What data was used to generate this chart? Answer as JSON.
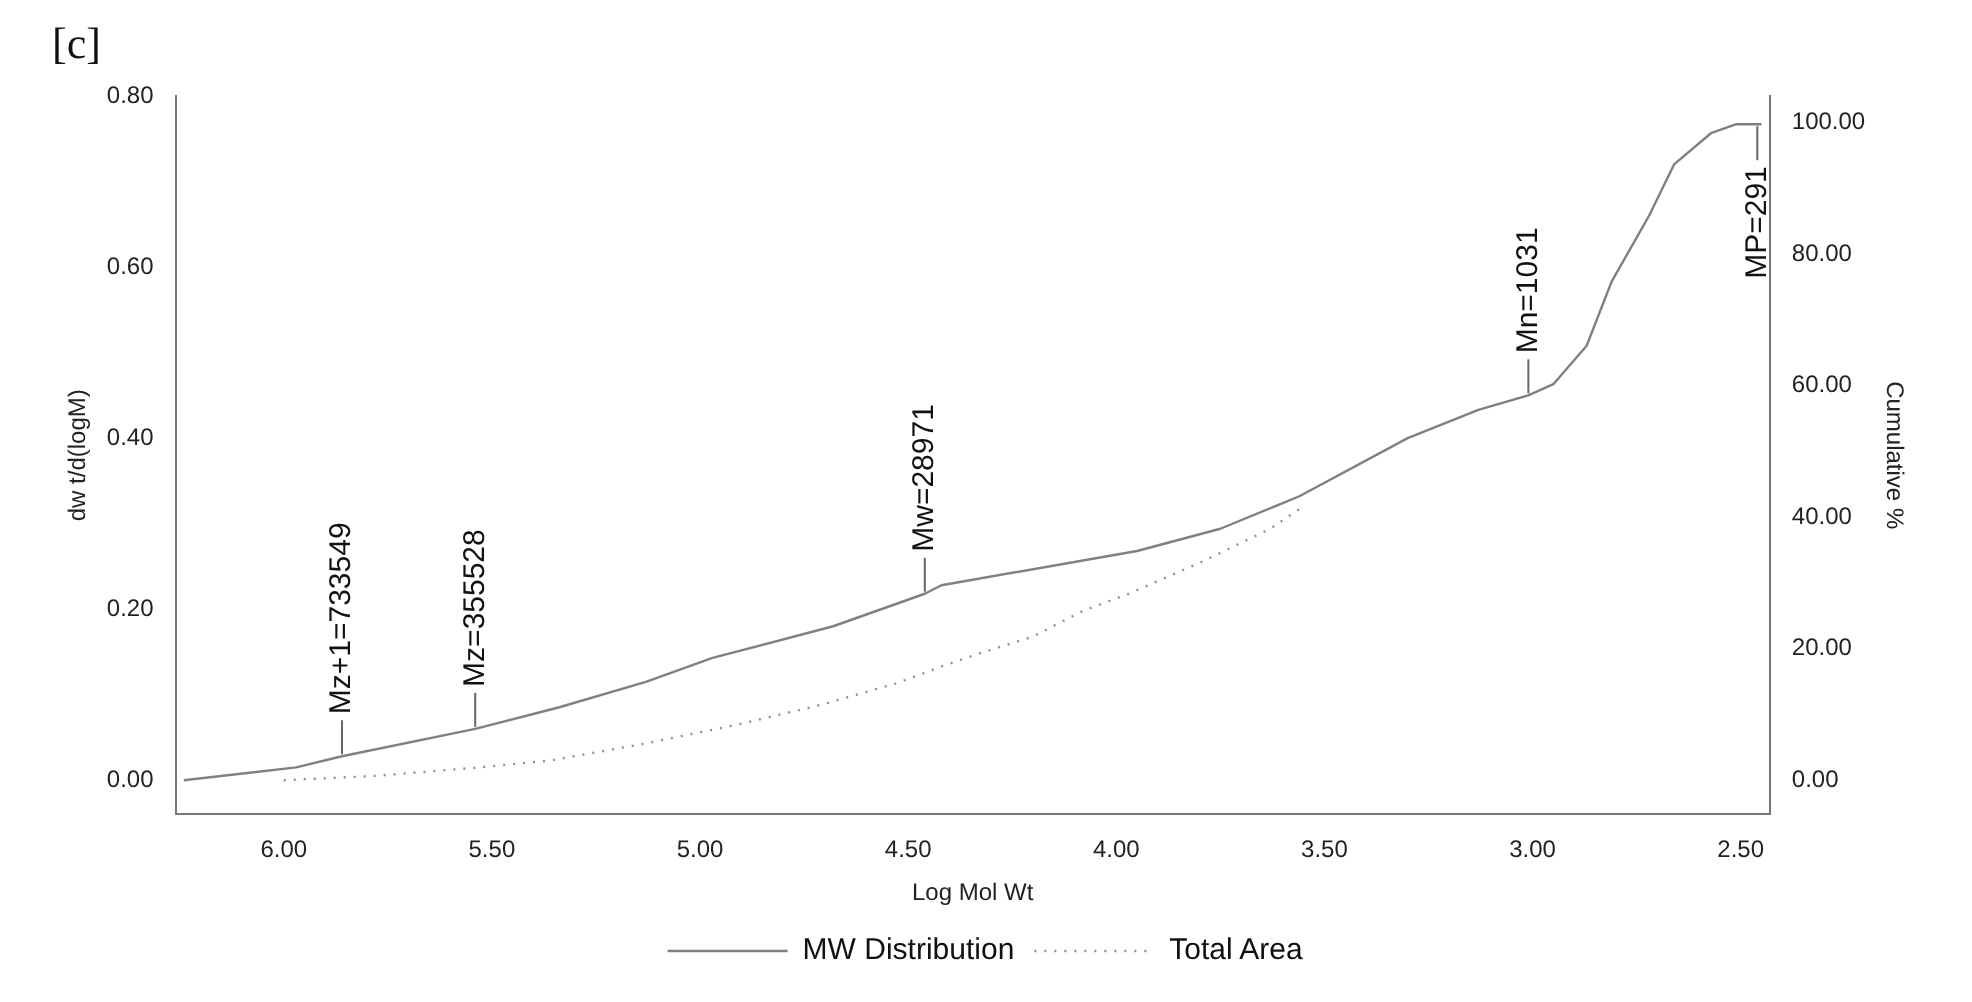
{
  "chart_data": {
    "type": "line",
    "xlabel": "Log Mol Wt",
    "ylabel": "dw t/d(logM)",
    "y2label": "Cumulative %",
    "annotations": [
      "[c]",
      {
        "text": "Mz+1=733549",
        "x": 5.86,
        "y": 0.028
      },
      {
        "text": "Mz=355528",
        "x": 5.54,
        "y": 0.06
      },
      {
        "text": "Mw=28971",
        "x": 4.46,
        "y": 0.218
      },
      {
        "text": "Mn=1031",
        "x": 3.01,
        "y": 0.45
      },
      {
        "text": "MP=291",
        "x": 2.46,
        "y": 0.767
      }
    ],
    "series": [
      {
        "name": "MW Distribution",
        "color": "#808080",
        "line_style": "solid",
        "x": [
          6.24,
          5.97,
          5.86,
          5.54,
          5.34,
          5.13,
          4.97,
          4.68,
          4.46,
          4.42,
          3.95,
          3.75,
          3.56,
          3.3,
          3.13,
          3.01,
          2.95,
          2.87,
          2.81,
          2.72,
          2.66,
          2.57,
          2.51,
          2.45
        ],
        "values": [
          0.0,
          0.015,
          0.028,
          0.06,
          0.085,
          0.115,
          0.143,
          0.18,
          0.218,
          0.228,
          0.268,
          0.294,
          0.332,
          0.4,
          0.433,
          0.45,
          0.463,
          0.508,
          0.583,
          0.66,
          0.72,
          0.757,
          0.767,
          0.767
        ]
      },
      {
        "name": "Total Area",
        "color": "#909090",
        "line_style": "dotted",
        "x": [
          6.0,
          5.78,
          5.53,
          5.36,
          5.13,
          4.91,
          4.71,
          4.53,
          4.42,
          4.33,
          4.2,
          4.08,
          3.97,
          3.8,
          3.63,
          3.56
        ],
        "values": [
          0.0,
          0.005,
          0.015,
          0.023,
          0.043,
          0.065,
          0.088,
          0.113,
          0.133,
          0.148,
          0.168,
          0.198,
          0.218,
          0.254,
          0.294,
          0.317
        ]
      }
    ],
    "xlim": [
      6.26,
      2.43
    ],
    "xticks": [
      {
        "value": 6,
        "label": "6.00"
      },
      {
        "value": 5.5,
        "label": "5.50"
      },
      {
        "value": 5,
        "label": "5.00"
      },
      {
        "value": 4.5,
        "label": "4.50"
      },
      {
        "value": 4,
        "label": "4.00"
      },
      {
        "value": 3.5,
        "label": "3.50"
      },
      {
        "value": 3,
        "label": "3.00"
      },
      {
        "value": 2.5,
        "label": "2.50"
      }
    ],
    "ylim": [
      -0.04,
      0.8
    ],
    "yticks": [
      {
        "value": 0,
        "label": "0.00"
      },
      {
        "value": 0.2,
        "label": "0.20"
      },
      {
        "value": 0.4,
        "label": "0.40"
      },
      {
        "value": 0.6,
        "label": "0.60"
      },
      {
        "value": 0.8,
        "label": "0.80"
      }
    ],
    "y2lim": [
      -5.2,
      104
    ],
    "y2ticks": [
      {
        "value": 0,
        "label": "0.00"
      },
      {
        "value": 20,
        "label": "20.00"
      },
      {
        "value": 40,
        "label": "40.00"
      },
      {
        "value": 60,
        "label": "60.00"
      },
      {
        "value": 80,
        "label": "80.00"
      },
      {
        "value": 100,
        "label": "100.00"
      }
    ],
    "grid": false,
    "legend": "bottom",
    "marker": "none"
  }
}
